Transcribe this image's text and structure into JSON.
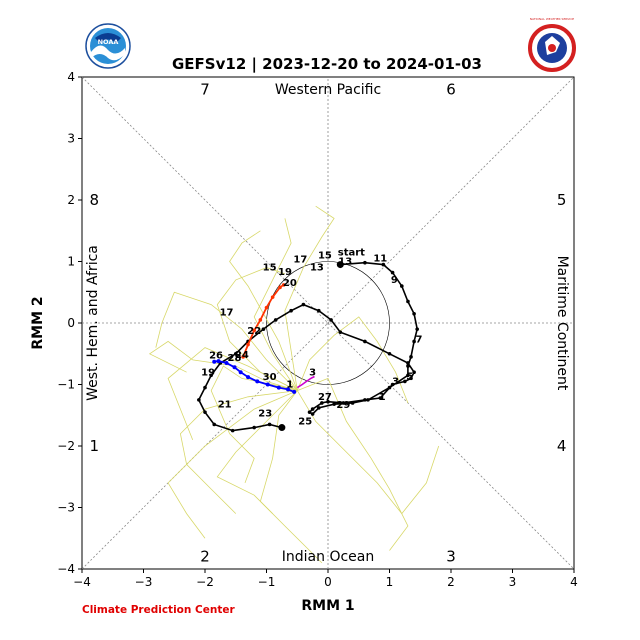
{
  "figure": {
    "title": "GEFSv12 | 2023-12-20 to 2024-01-03",
    "footer": "Climate Prediction Center",
    "logo_left": "NOAA",
    "logo_right": "NATIONAL WEATHER SERVICE"
  },
  "chart_data": {
    "type": "line",
    "title": "GEFSv12 | 2023-12-20 to 2024-01-03",
    "xlabel": "RMM 1",
    "ylabel": "RMM 2",
    "xlim": [
      -4,
      4
    ],
    "ylim": [
      -4,
      4
    ],
    "xticks": [
      "−4",
      "−3",
      "−2",
      "−1",
      "0",
      "1",
      "2",
      "3",
      "4"
    ],
    "yticks": [
      "−4",
      "−3",
      "−2",
      "−1",
      "0",
      "1",
      "2",
      "3",
      "4"
    ],
    "phase_numbers": [
      {
        "label": "7",
        "x": -2.0,
        "y": 3.8
      },
      {
        "label": "6",
        "x": 2.0,
        "y": 3.8
      },
      {
        "label": "8",
        "x": -3.8,
        "y": 2.0
      },
      {
        "label": "5",
        "x": 3.8,
        "y": 2.0
      },
      {
        "label": "1",
        "x": -3.8,
        "y": -2.0
      },
      {
        "label": "4",
        "x": 3.8,
        "y": -2.0
      },
      {
        "label": "2",
        "x": -2.0,
        "y": -3.8
      },
      {
        "label": "3",
        "x": 2.0,
        "y": -3.8
      }
    ],
    "regions": {
      "top": "Western Pacific",
      "bottom": "Indian Ocean",
      "left": "West. Hem. and Africa",
      "right": "Maritime Continent"
    },
    "colors": {
      "observed": "#000000",
      "ensemble_members": "#d8d86a",
      "ensemble_mean_week1": "#0000ff",
      "ensemble_mean_week2": "#ff3300",
      "transition": "#cc00cc"
    },
    "observed": {
      "x": [
        0.2,
        0.6,
        0.9,
        1.05,
        1.2,
        1.3,
        1.4,
        1.45,
        1.4,
        1.35,
        1.3,
        1.3,
        1.0,
        0.65,
        0.4,
        0.1,
        -0.15,
        -0.25,
        -0.3,
        -0.25,
        -0.1,
        0.0,
        0.25,
        0.6,
        0.85,
        1.05,
        1.25,
        1.35,
        1.4,
        1.3,
        1.0,
        0.6,
        0.2,
        0.05,
        -0.15,
        -0.4,
        -0.6,
        -0.85,
        -1.05,
        -1.3,
        -1.5,
        -1.75,
        -1.9,
        -2.0,
        -2.1,
        -2.0,
        -1.85,
        -1.55,
        -1.2,
        -0.95,
        -0.75
      ],
      "y": [
        0.95,
        0.98,
        0.95,
        0.82,
        0.6,
        0.35,
        0.15,
        -0.1,
        -0.3,
        -0.55,
        -0.7,
        -0.85,
        -1.05,
        -1.25,
        -1.3,
        -1.32,
        -1.38,
        -1.48,
        -1.45,
        -1.4,
        -1.3,
        -1.28,
        -1.3,
        -1.25,
        -1.22,
        -1.0,
        -0.95,
        -0.9,
        -0.8,
        -0.65,
        -0.5,
        -0.3,
        -0.15,
        0.05,
        0.2,
        0.3,
        0.2,
        0.05,
        -0.1,
        -0.3,
        -0.5,
        -0.65,
        -0.85,
        -1.05,
        -1.25,
        -1.45,
        -1.65,
        -1.75,
        -1.7,
        -1.65,
        -1.7
      ],
      "day_labels": [
        {
          "text": "start",
          "x": 0.38,
          "y": 1.1
        },
        {
          "text": "11",
          "x": 0.85,
          "y": 1.0
        },
        {
          "text": "9",
          "x": 1.08,
          "y": 0.65
        },
        {
          "text": "7",
          "x": 1.48,
          "y": -0.32
        },
        {
          "text": "5",
          "x": 1.33,
          "y": -0.92
        },
        {
          "text": "3",
          "x": 1.1,
          "y": -1.0
        },
        {
          "text": "1",
          "x": 0.88,
          "y": -1.25
        },
        {
          "text": "29",
          "x": 0.25,
          "y": -1.38
        },
        {
          "text": "27",
          "x": -0.05,
          "y": -1.25
        },
        {
          "text": "25",
          "x": -0.37,
          "y": -1.65
        },
        {
          "text": "23",
          "x": -1.02,
          "y": -1.52
        },
        {
          "text": "21",
          "x": -1.68,
          "y": -1.37
        },
        {
          "text": "19",
          "x": -1.95,
          "y": -0.85
        },
        {
          "text": "17",
          "x": -1.65,
          "y": 0.12
        },
        {
          "text": "15",
          "x": -0.95,
          "y": 0.85
        },
        {
          "text": "17",
          "x": -0.45,
          "y": 0.98
        },
        {
          "text": "15",
          "x": -0.05,
          "y": 1.05
        },
        {
          "text": "13",
          "x": -0.18,
          "y": 0.85
        },
        {
          "text": "13",
          "x": 0.28,
          "y": 0.95
        }
      ]
    },
    "ensemble_mean_week1": {
      "x": [
        -0.55,
        -0.65,
        -0.8,
        -0.98,
        -1.15,
        -1.3,
        -1.42,
        -1.52,
        -1.65,
        -1.78,
        -1.85
      ],
      "y": [
        -1.12,
        -1.08,
        -1.05,
        -1.0,
        -0.95,
        -0.88,
        -0.8,
        -0.72,
        -0.65,
        -0.62,
        -0.63
      ]
    },
    "ensemble_mean_week2": {
      "x": [
        -1.38,
        -1.3,
        -1.2,
        -1.1,
        -1.0,
        -0.9,
        -0.78,
        -0.72
      ],
      "y": [
        -0.55,
        -0.35,
        -0.12,
        0.05,
        0.25,
        0.42,
        0.58,
        0.62
      ]
    },
    "transition": {
      "x": [
        -0.5,
        -0.42,
        -0.35,
        -0.28,
        -0.22
      ],
      "y": [
        -1.05,
        -1.0,
        -0.95,
        -0.9,
        -0.87
      ]
    },
    "mean_labels": [
      {
        "text": "1",
        "x": -0.62,
        "y": -1.05
      },
      {
        "text": "3",
        "x": -0.25,
        "y": -0.85
      },
      {
        "text": "30",
        "x": -0.95,
        "y": -0.93
      },
      {
        "text": "26",
        "x": -1.82,
        "y": -0.58
      },
      {
        "text": "28",
        "x": -1.52,
        "y": -0.62
      },
      {
        "text": "24",
        "x": -1.4,
        "y": -0.57
      },
      {
        "text": "22",
        "x": -1.2,
        "y": -0.18
      },
      {
        "text": "20",
        "x": -0.62,
        "y": 0.6
      },
      {
        "text": "19",
        "x": -0.7,
        "y": 0.78
      }
    ],
    "ensemble_members": [
      {
        "x": [
          -0.5,
          -0.9,
          -1.4,
          -1.7,
          -1.9,
          -1.6,
          -1.2,
          -1.35
        ],
        "y": [
          -1.1,
          -1.0,
          -0.9,
          -0.7,
          -1.1,
          -1.8,
          -2.2,
          -2.6
        ]
      },
      {
        "x": [
          -0.5,
          -1.0,
          -1.5,
          -2.2,
          -2.6,
          -2.9,
          -2.3
        ],
        "y": [
          -1.1,
          -0.95,
          -0.7,
          -0.6,
          -0.3,
          -0.5,
          -0.8
        ]
      },
      {
        "x": [
          -0.5,
          -1.1,
          -1.6,
          -1.8,
          -1.5,
          -1.0,
          -0.7
        ],
        "y": [
          -1.1,
          -0.8,
          -0.3,
          0.3,
          0.7,
          0.9,
          0.8
        ]
      },
      {
        "x": [
          -0.5,
          -0.9,
          -1.2,
          -1.0,
          -0.8,
          -0.6,
          -0.7
        ],
        "y": [
          -1.1,
          -0.5,
          0.1,
          0.5,
          0.9,
          1.3,
          1.7
        ]
      },
      {
        "x": [
          -0.5,
          -0.8,
          -0.9,
          -1.1,
          -0.7,
          -0.4,
          -0.1
        ],
        "y": [
          -1.1,
          -1.5,
          -2.2,
          -2.9,
          -3.3,
          -3.6,
          -3.9
        ]
      },
      {
        "x": [
          -0.5,
          -0.2,
          0.3,
          0.8,
          1.2,
          1.6,
          1.8
        ],
        "y": [
          -1.1,
          -1.6,
          -2.1,
          -2.6,
          -3.1,
          -2.6,
          -2.0
        ]
      },
      {
        "x": [
          -0.5,
          -1.3,
          -2.0,
          -2.4,
          -2.3,
          -1.9,
          -1.5
        ],
        "y": [
          -1.1,
          -1.2,
          -1.4,
          -1.8,
          -2.3,
          -2.7,
          -3.1
        ]
      },
      {
        "x": [
          -0.5,
          -0.3,
          0.1,
          0.5,
          0.8,
          1.1,
          1.3
        ],
        "y": [
          -1.1,
          -0.6,
          -0.2,
          0.1,
          -0.3,
          -0.8,
          -1.3
        ]
      },
      {
        "x": [
          -0.5,
          -1.0,
          -1.4,
          -1.9,
          -2.5,
          -2.7,
          -2.8
        ],
        "y": [
          -1.1,
          -0.6,
          -0.1,
          0.3,
          0.5,
          0.0,
          -0.4
        ]
      },
      {
        "x": [
          -0.5,
          -0.7,
          -0.4,
          -0.1,
          0.1,
          -0.2
        ],
        "y": [
          -1.1,
          0.2,
          0.9,
          1.4,
          1.7,
          1.9
        ]
      },
      {
        "x": [
          -0.5,
          -1.2,
          -2.0,
          -2.6,
          -2.3,
          -2.0
        ],
        "y": [
          -1.1,
          -1.4,
          -2.0,
          -2.6,
          -3.1,
          -3.5
        ]
      },
      {
        "x": [
          -0.5,
          -1.0,
          -1.5,
          -1.8,
          -1.2,
          -0.9
        ],
        "y": [
          -1.1,
          -1.6,
          -2.1,
          -2.5,
          -2.8,
          -3.1
        ]
      },
      {
        "x": [
          -0.5,
          0.0,
          0.3,
          0.7,
          1.0,
          1.3,
          1.0
        ],
        "y": [
          -1.1,
          -0.9,
          -1.6,
          -2.2,
          -2.7,
          -3.3,
          -3.7
        ]
      },
      {
        "x": [
          -0.5,
          -1.3,
          -2.0,
          -2.6,
          -2.4,
          -2.2
        ],
        "y": [
          -1.1,
          -0.7,
          -0.4,
          -0.9,
          -1.4,
          -1.9
        ]
      },
      {
        "x": [
          -0.5,
          -0.8,
          -1.3,
          -1.6,
          -1.4,
          -1.1
        ],
        "y": [
          -1.1,
          -0.3,
          0.6,
          1.0,
          1.3,
          1.5
        ]
      }
    ]
  }
}
